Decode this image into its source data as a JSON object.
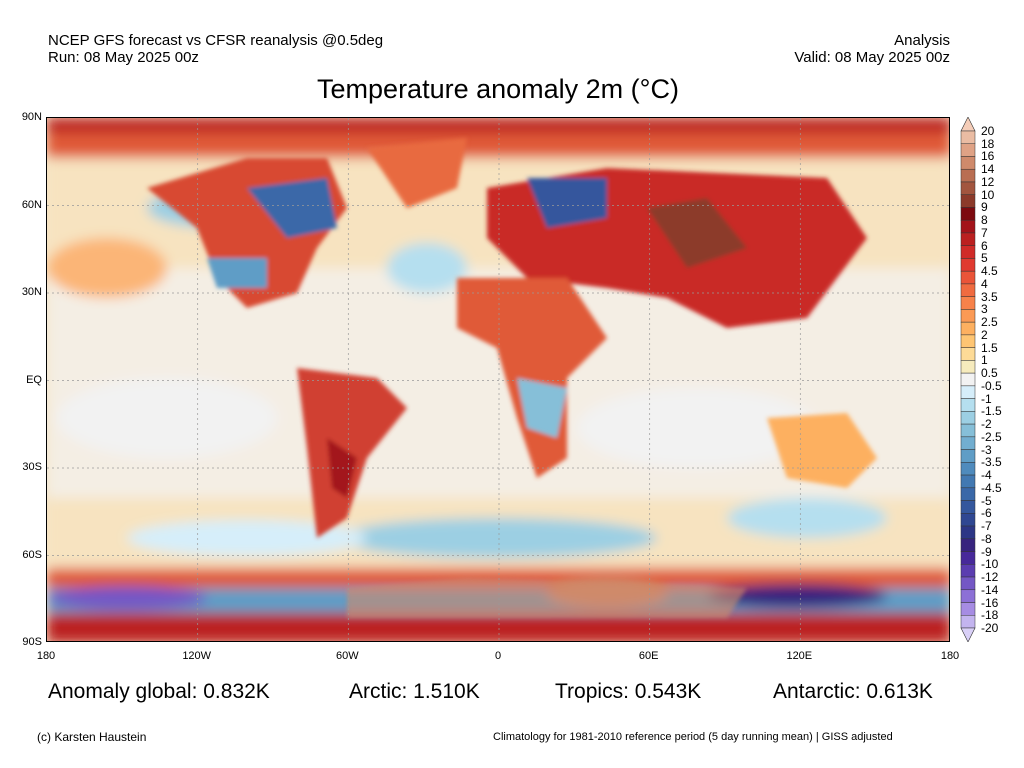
{
  "header": {
    "left_line1": "NCEP GFS forecast vs CFSR reanalysis @0.5deg",
    "left_line2": "Run: 08 May 2025 00z",
    "right_line1": "Analysis",
    "right_line2": "Valid: 08 May 2025 00z"
  },
  "title": "Temperature anomaly 2m (°C)",
  "map": {
    "lat_labels": [
      "90N",
      "60N",
      "30N",
      "EQ",
      "30S",
      "60S",
      "90S"
    ],
    "lon_labels": [
      "180",
      "120W",
      "60W",
      "0",
      "60E",
      "120E",
      "180"
    ]
  },
  "colorbar": {
    "labels": [
      "20",
      "18",
      "16",
      "14",
      "12",
      "10",
      "9",
      "8",
      "7",
      "6",
      "5",
      "4.5",
      "4",
      "3.5",
      "3",
      "2.5",
      "2",
      "1.5",
      "1",
      "0.5",
      "-0.5",
      "-1",
      "-1.5",
      "-2",
      "-2.5",
      "-3",
      "-3.5",
      "-4",
      "-4.5",
      "-5",
      "-6",
      "-7",
      "-8",
      "-9",
      "-10",
      "-12",
      "-14",
      "-16",
      "-18",
      "-20"
    ],
    "colors": [
      "#eabca3",
      "#dfa285",
      "#cf8a6b",
      "#b96e52",
      "#a2553e",
      "#8c3a2a",
      "#7d0a0f",
      "#a3131a",
      "#bb2020",
      "#d02b28",
      "#e03a30",
      "#ea5438",
      "#f06b40",
      "#f7824a",
      "#fb9a55",
      "#fdb060",
      "#fec573",
      "#fddb97",
      "#f6ebbd",
      "#f2f2f2",
      "#d6eefa",
      "#b5dfef",
      "#9ccfe3",
      "#86bfd8",
      "#72aed0",
      "#5f9dc6",
      "#4f8bbd",
      "#4279b2",
      "#3a68a8",
      "#34579d",
      "#2f4792",
      "#2c3686",
      "#37247e",
      "#47299a",
      "#5b3db0",
      "#7457c5",
      "#8c70d6",
      "#a68ce3",
      "#c3b4ef"
    ],
    "top_color": "#f5cdb8",
    "bottom_color": "#d9d0f7"
  },
  "stats": {
    "global": "Anomaly global: 0.832K",
    "arctic": "Arctic: 1.510K",
    "tropics": "Tropics: 0.543K",
    "antarctic": "Antarctic: 0.613K"
  },
  "footer": {
    "credit": "(c) Karsten Haustein",
    "note": "Climatology for 1981-2010 reference period (5 day running mean) | GISS adjusted"
  }
}
